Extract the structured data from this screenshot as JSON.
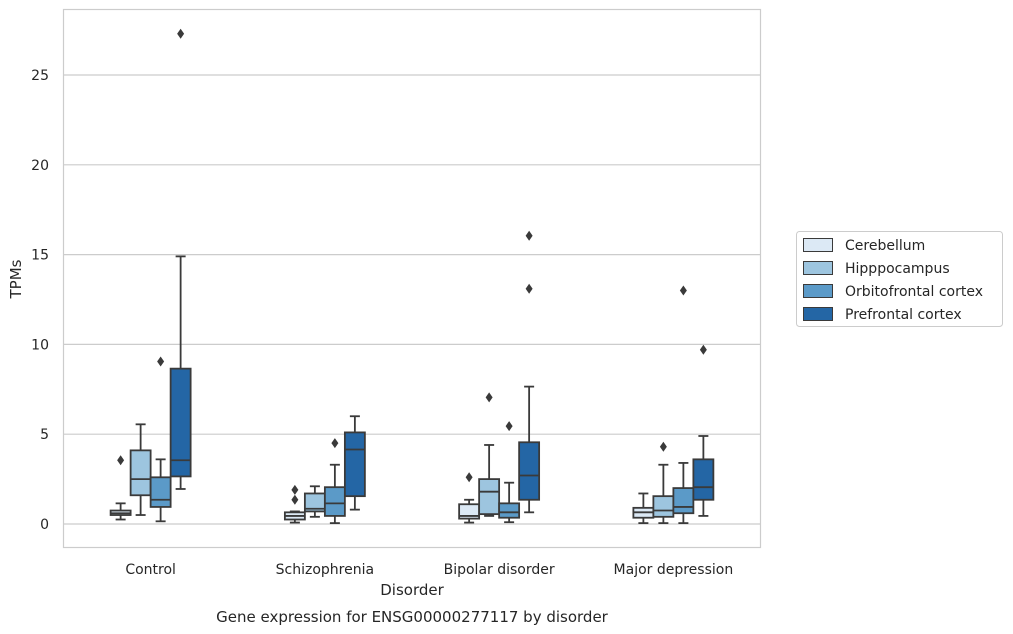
{
  "caption": "Gene expression for ENSG00000277117 by disorder",
  "chart_data": {
    "type": "box",
    "xlabel": "Disorder",
    "ylabel": "TPMs",
    "ylim": [
      -1.3,
      28.5
    ],
    "yticks": [
      0,
      5,
      10,
      15,
      20,
      25
    ],
    "grid": true,
    "legend_position": "outside-right",
    "categories": [
      "Control",
      "Schizophrenia",
      "Bipolar disorder",
      "Major depression"
    ],
    "series": [
      {
        "name": "Cerebellum",
        "color": "#dce9f5",
        "boxes": [
          {
            "whisker_low": 0.25,
            "q1": 0.5,
            "median": 0.6,
            "q3": 0.75,
            "whisker_high": 1.15,
            "outliers": [
              3.55
            ]
          },
          {
            "whisker_low": 0.08,
            "q1": 0.25,
            "median": 0.45,
            "q3": 0.65,
            "whisker_high": 0.7,
            "outliers": [
              1.35,
              1.9
            ]
          },
          {
            "whisker_low": 0.08,
            "q1": 0.3,
            "median": 0.45,
            "q3": 1.1,
            "whisker_high": 1.35,
            "outliers": [
              2.6
            ]
          },
          {
            "whisker_low": 0.05,
            "q1": 0.35,
            "median": 0.65,
            "q3": 0.9,
            "whisker_high": 1.7,
            "outliers": []
          }
        ]
      },
      {
        "name": "Hipppocampus",
        "color": "#9dc5df",
        "boxes": [
          {
            "whisker_low": 0.5,
            "q1": 1.6,
            "median": 2.5,
            "q3": 4.1,
            "whisker_high": 5.55,
            "outliers": []
          },
          {
            "whisker_low": 0.4,
            "q1": 0.7,
            "median": 0.85,
            "q3": 1.7,
            "whisker_high": 2.1,
            "outliers": []
          },
          {
            "whisker_low": 0.45,
            "q1": 0.55,
            "median": 1.8,
            "q3": 2.5,
            "whisker_high": 4.4,
            "outliers": [
              7.05
            ]
          },
          {
            "whisker_low": 0.05,
            "q1": 0.4,
            "median": 0.75,
            "q3": 1.55,
            "whisker_high": 3.3,
            "outliers": [
              4.3
            ]
          }
        ]
      },
      {
        "name": "Orbitofrontal cortex",
        "color": "#5b9ac8",
        "boxes": [
          {
            "whisker_low": 0.15,
            "q1": 0.95,
            "median": 1.35,
            "q3": 2.6,
            "whisker_high": 3.6,
            "outliers": [
              9.05
            ]
          },
          {
            "whisker_low": 0.05,
            "q1": 0.45,
            "median": 1.15,
            "q3": 2.05,
            "whisker_high": 3.3,
            "outliers": [
              4.5
            ]
          },
          {
            "whisker_low": 0.1,
            "q1": 0.35,
            "median": 0.65,
            "q3": 1.15,
            "whisker_high": 2.3,
            "outliers": [
              5.45
            ]
          },
          {
            "whisker_low": 0.05,
            "q1": 0.6,
            "median": 0.95,
            "q3": 2.0,
            "whisker_high": 3.4,
            "outliers": [
              13.0
            ]
          }
        ]
      },
      {
        "name": "Prefrontal cortex",
        "color": "#2466a5",
        "boxes": [
          {
            "whisker_low": 1.95,
            "q1": 2.65,
            "median": 3.55,
            "q3": 8.65,
            "whisker_high": 14.9,
            "outliers": [
              27.3
            ]
          },
          {
            "whisker_low": 0.8,
            "q1": 1.55,
            "median": 4.15,
            "q3": 5.1,
            "whisker_high": 6.0,
            "outliers": []
          },
          {
            "whisker_low": 0.65,
            "q1": 1.35,
            "median": 2.7,
            "q3": 4.55,
            "whisker_high": 7.65,
            "outliers": [
              13.1,
              16.05
            ]
          },
          {
            "whisker_low": 0.45,
            "q1": 1.35,
            "median": 2.05,
            "q3": 3.6,
            "whisker_high": 4.9,
            "outliers": [
              9.7
            ]
          }
        ]
      }
    ]
  }
}
